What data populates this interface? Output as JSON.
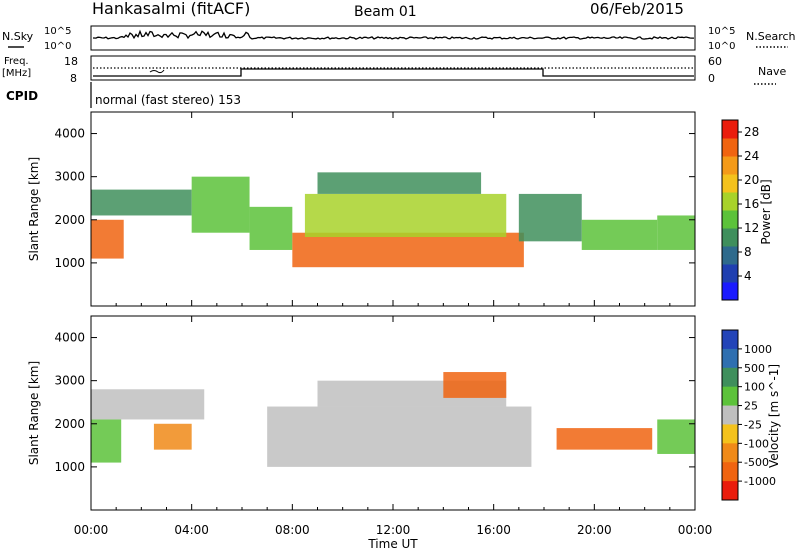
{
  "header": {
    "station": "Hankasalmi (fitACF)",
    "beam": "Beam 01",
    "date": "06/Feb/2015"
  },
  "panel_labels": {
    "nsky": "N.Sky",
    "nsearch": "N.Search",
    "freq_top": "Freq.",
    "freq_bottom": "[MHz]",
    "nave": "Nave",
    "cpid": "CPID",
    "cpid_value": "normal (fast stereo) 153"
  },
  "noise_axis": {
    "left_ticks": [
      "10^5",
      "10^0"
    ],
    "right_ticks": [
      "10^5",
      "10^0"
    ]
  },
  "freq_axis": {
    "left_ticks": [
      "18",
      "8"
    ],
    "right_ticks": [
      "60",
      "0"
    ]
  },
  "chart_data": [
    {
      "type": "heatmap",
      "title": "Power",
      "ylabel": "Slant Range [km]",
      "xlabel": "",
      "x": [
        "00:00",
        "04:00",
        "08:00",
        "12:00",
        "16:00",
        "20:00",
        "00:00"
      ],
      "ylim": [
        0,
        4500
      ],
      "yticks": [
        1000,
        2000,
        3000,
        4000
      ],
      "colorbar": {
        "label": "Power [dB]",
        "ticks": [
          4,
          8,
          12,
          16,
          20,
          24,
          28
        ],
        "range": [
          0,
          30
        ],
        "colors": [
          "#1a1aff",
          "#1f3fb0",
          "#2e6a8c",
          "#3f8f5c",
          "#5cc23a",
          "#a8d22a",
          "#f4c21c",
          "#f49a18",
          "#f06410",
          "#ea1c0c"
        ]
      },
      "bands": [
        {
          "t0": 0.0,
          "t1": 1.3,
          "r0": 1100,
          "r1": 2000,
          "level": 24
        },
        {
          "t0": 0.0,
          "t1": 4.0,
          "r0": 2100,
          "r1": 2700,
          "level": 10
        },
        {
          "t0": 4.0,
          "t1": 6.3,
          "r0": 1700,
          "r1": 3000,
          "level": 12
        },
        {
          "t0": 6.3,
          "t1": 8.0,
          "r0": 1300,
          "r1": 2300,
          "level": 14
        },
        {
          "t0": 8.0,
          "t1": 17.2,
          "r0": 900,
          "r1": 1700,
          "level": 26
        },
        {
          "t0": 8.5,
          "t1": 16.5,
          "r0": 1600,
          "r1": 2600,
          "level": 16
        },
        {
          "t0": 9.0,
          "t1": 15.5,
          "r0": 2600,
          "r1": 3100,
          "level": 10
        },
        {
          "t0": 17.0,
          "t1": 19.5,
          "r0": 1500,
          "r1": 2600,
          "level": 10
        },
        {
          "t0": 19.5,
          "t1": 22.5,
          "r0": 1300,
          "r1": 2000,
          "level": 12
        },
        {
          "t0": 22.5,
          "t1": 24.0,
          "r0": 1300,
          "r1": 2100,
          "level": 14
        }
      ]
    },
    {
      "type": "heatmap",
      "title": "Velocity",
      "ylabel": "Slant Range [km]",
      "xlabel": "Time UT",
      "x": [
        "00:00",
        "04:00",
        "08:00",
        "12:00",
        "16:00",
        "20:00",
        "00:00"
      ],
      "ylim": [
        0,
        4500
      ],
      "yticks": [
        1000,
        2000,
        3000,
        4000
      ],
      "colorbar": {
        "label": "Velocity [m s^-1]",
        "ticks": [
          "1000",
          "500",
          "100",
          "25",
          "-25",
          "-100",
          "-500",
          "-1000"
        ],
        "colors": [
          "#2344b8",
          "#2f6fb0",
          "#3f8f5c",
          "#5cc23a",
          "#bfbfbf",
          "#f4c21c",
          "#f08a18",
          "#f06410",
          "#ea1c0c"
        ]
      },
      "bands": [
        {
          "t0": 0.0,
          "t1": 1.2,
          "r0": 1100,
          "r1": 2100,
          "level": "100"
        },
        {
          "t0": 0.0,
          "t1": 4.5,
          "r0": 2100,
          "r1": 2800,
          "level": "25"
        },
        {
          "t0": 2.5,
          "t1": 4.0,
          "r0": 1400,
          "r1": 2000,
          "level": "-100"
        },
        {
          "t0": 7.0,
          "t1": 17.5,
          "r0": 1000,
          "r1": 2400,
          "level": "25"
        },
        {
          "t0": 9.0,
          "t1": 16.5,
          "r0": 2400,
          "r1": 3000,
          "level": "25"
        },
        {
          "t0": 14.0,
          "t1": 16.5,
          "r0": 2600,
          "r1": 3200,
          "level": "-500"
        },
        {
          "t0": 18.5,
          "t1": 22.3,
          "r0": 1400,
          "r1": 1900,
          "level": "-500"
        },
        {
          "t0": 22.5,
          "t1": 24.0,
          "r0": 1300,
          "r1": 2100,
          "level": "100"
        }
      ]
    }
  ]
}
